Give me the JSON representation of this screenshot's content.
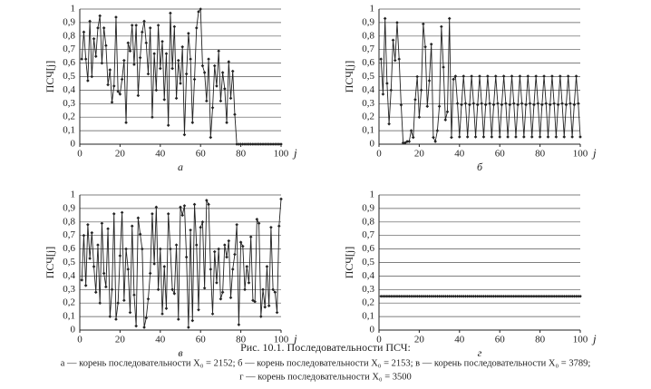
{
  "chart_data": [
    {
      "type": "line",
      "panel_label": "а",
      "y_label": "ПСЧ[j]",
      "x_label": "j",
      "x": [
        1,
        2,
        3,
        4,
        5,
        6,
        7,
        8,
        9,
        10,
        11,
        12,
        13,
        14,
        15,
        16,
        17,
        18,
        19,
        20,
        21,
        22,
        23,
        24,
        25,
        26,
        27,
        28,
        29,
        30,
        31,
        32,
        33,
        34,
        35,
        36,
        37,
        38,
        39,
        40,
        41,
        42,
        43,
        44,
        45,
        46,
        47,
        48,
        49,
        50,
        51,
        52,
        53,
        54,
        55,
        56,
        57,
        58,
        59,
        60,
        61,
        62,
        63,
        64,
        65,
        66,
        67,
        68,
        69,
        70,
        71,
        72,
        73,
        74,
        75,
        76,
        77,
        78,
        79,
        80,
        81,
        82,
        83,
        84,
        85,
        86,
        87,
        88,
        89,
        90,
        91,
        92,
        93,
        94,
        95,
        96,
        97,
        98,
        99,
        100
      ],
      "values": [
        0.63,
        0.83,
        0.63,
        0.47,
        0.91,
        0.5,
        0.78,
        0.65,
        0.86,
        0.95,
        0.6,
        0.86,
        0.73,
        0.44,
        0.55,
        0.31,
        0.43,
        0.94,
        0.39,
        0.37,
        0.48,
        0.62,
        0.16,
        0.75,
        0.69,
        0.88,
        0.59,
        0.88,
        0.36,
        0.64,
        0.83,
        0.91,
        0.75,
        0.52,
        0.86,
        0.2,
        0.67,
        0.4,
        0.88,
        0.56,
        0.76,
        0.33,
        0.67,
        0.14,
        0.97,
        0.56,
        0.87,
        0.34,
        0.62,
        0.45,
        0.72,
        0.07,
        0.52,
        0.82,
        0.63,
        0.16,
        0.48,
        0.86,
        0.98,
        1.0,
        0.58,
        0.53,
        0.32,
        0.63,
        0.05,
        0.27,
        0.58,
        0.43,
        0.69,
        0.32,
        0.53,
        0.41,
        0.16,
        0.61,
        0.34,
        0.54,
        0.22,
        0,
        0,
        0,
        0,
        0,
        0,
        0,
        0,
        0,
        0,
        0,
        0,
        0,
        0,
        0,
        0,
        0,
        0,
        0,
        0,
        0,
        0,
        0
      ],
      "color": "#222222",
      "xlim": [
        0,
        100
      ],
      "xticks": [
        0,
        20,
        40,
        60,
        80,
        100
      ],
      "ylim": [
        0,
        1
      ],
      "yticks": [
        0,
        {
          "value": 0.1,
          "label": "0,1"
        },
        {
          "value": 0.2,
          "label": "0,2"
        },
        {
          "value": 0.3,
          "label": "0,3"
        },
        {
          "value": 0.4,
          "label": "0,4"
        },
        {
          "value": 0.5,
          "label": "0,5"
        },
        {
          "value": 0.6,
          "label": "0,6"
        },
        {
          "value": 0.7,
          "label": "0,7"
        },
        {
          "value": 0.8,
          "label": "0,8"
        },
        {
          "value": 0.9,
          "label": "0,9"
        },
        1
      ],
      "grid": true
    },
    {
      "type": "line",
      "panel_label": "б",
      "y_label": "ПСЧ[j]",
      "x_label": "j",
      "x": [
        1,
        2,
        3,
        4,
        5,
        6,
        7,
        8,
        9,
        10,
        11,
        12,
        13,
        14,
        15,
        16,
        17,
        18,
        19,
        20,
        21,
        22,
        23,
        24,
        25,
        26,
        27,
        28,
        29,
        30,
        31,
        32,
        33,
        34,
        35,
        36,
        37,
        38,
        39,
        40,
        41,
        42,
        43,
        44,
        45,
        46,
        47,
        48,
        49,
        50,
        51,
        52,
        53,
        54,
        55,
        56,
        57,
        58,
        59,
        60,
        61,
        62,
        63,
        64,
        65,
        66,
        67,
        68,
        69,
        70,
        71,
        72,
        73,
        74,
        75,
        76,
        77,
        78,
        79,
        80,
        81,
        82,
        83,
        84,
        85,
        86,
        87,
        88,
        89,
        90,
        91,
        92,
        93,
        94,
        95,
        96,
        97,
        98,
        99,
        100
      ],
      "values": [
        0.63,
        0.37,
        0.93,
        0.45,
        0.15,
        0.4,
        0.77,
        0.62,
        0.9,
        0.63,
        0.29,
        0.01,
        0.01,
        0.02,
        0.02,
        0.1,
        0.05,
        0.33,
        0.5,
        0.2,
        0.4,
        0.89,
        0.72,
        0.28,
        0.47,
        0.74,
        0.05,
        0.02,
        0.1,
        0.28,
        0.87,
        0.57,
        0.18,
        0.24,
        0.93,
        0.05,
        0.48,
        0.503,
        0.3009,
        0.054,
        0.2916,
        0.503,
        0.3009,
        0.054,
        0.2916,
        0.503,
        0.3009,
        0.054,
        0.2916,
        0.503,
        0.3009,
        0.054,
        0.2916,
        0.503,
        0.3009,
        0.054,
        0.2916,
        0.503,
        0.3009,
        0.054,
        0.2916,
        0.503,
        0.3009,
        0.054,
        0.2916,
        0.503,
        0.3009,
        0.054,
        0.2916,
        0.503,
        0.3009,
        0.054,
        0.2916,
        0.503,
        0.3009,
        0.054,
        0.2916,
        0.503,
        0.3009,
        0.054,
        0.2916,
        0.503,
        0.3009,
        0.054,
        0.2916,
        0.503,
        0.3009,
        0.054,
        0.2916,
        0.503,
        0.3009,
        0.054,
        0.2916,
        0.503,
        0.3009,
        0.054,
        0.2916,
        0.503,
        0.3009,
        0.054
      ],
      "color": "#222222",
      "xlim": [
        0,
        100
      ],
      "xticks": [
        0,
        20,
        40,
        60,
        80,
        100
      ],
      "ylim": [
        0,
        1
      ],
      "yticks": [
        0,
        {
          "value": 0.1,
          "label": "0,1"
        },
        {
          "value": 0.2,
          "label": "0,2"
        },
        {
          "value": 0.3,
          "label": "0,3"
        },
        {
          "value": 0.4,
          "label": "0,4"
        },
        {
          "value": 0.5,
          "label": "0,5"
        },
        {
          "value": 0.6,
          "label": "0,6"
        },
        {
          "value": 0.7,
          "label": "0,7"
        },
        {
          "value": 0.8,
          "label": "0,8"
        },
        {
          "value": 0.9,
          "label": "0,9"
        },
        1
      ],
      "grid": true
    },
    {
      "type": "line",
      "panel_label": "в",
      "y_label": "ПСЧ[j]",
      "x_label": "j",
      "x": [
        1,
        2,
        3,
        4,
        5,
        6,
        7,
        8,
        9,
        10,
        11,
        12,
        13,
        14,
        15,
        16,
        17,
        18,
        19,
        20,
        21,
        22,
        23,
        24,
        25,
        26,
        27,
        28,
        29,
        30,
        31,
        32,
        33,
        34,
        35,
        36,
        37,
        38,
        39,
        40,
        41,
        42,
        43,
        44,
        45,
        46,
        47,
        48,
        49,
        50,
        51,
        52,
        53,
        54,
        55,
        56,
        57,
        58,
        59,
        60,
        61,
        62,
        63,
        64,
        65,
        66,
        67,
        68,
        69,
        70,
        71,
        72,
        73,
        74,
        75,
        76,
        77,
        78,
        79,
        80,
        81,
        82,
        83,
        84,
        85,
        86,
        87,
        88,
        89,
        90,
        91,
        92,
        93,
        94,
        95,
        96,
        97,
        98,
        99,
        100
      ],
      "values": [
        0.37,
        0.7,
        0.33,
        0.78,
        0.53,
        0.72,
        0.47,
        0.28,
        0.63,
        0.2,
        0.79,
        0.42,
        0.32,
        0.75,
        0.1,
        0.3,
        0.86,
        0.08,
        0.2,
        0.55,
        0.87,
        0.22,
        0.6,
        0.45,
        0.13,
        0.77,
        0.26,
        0.03,
        0.83,
        0.71,
        0.6,
        0.02,
        0.09,
        0.23,
        0.42,
        0.86,
        0.49,
        0.91,
        0.3,
        0.6,
        0.12,
        0.47,
        0.16,
        0.86,
        0.6,
        0.3,
        0.27,
        0.63,
        0.08,
        0.91,
        0.85,
        0.92,
        0.54,
        0.02,
        0.74,
        0.07,
        0.93,
        0.63,
        0.15,
        0.76,
        0.8,
        0.31,
        0.96,
        0.93,
        0.45,
        0.12,
        0.58,
        0.35,
        0.6,
        0.23,
        0.28,
        0.63,
        0.54,
        0.66,
        0.24,
        0.45,
        0.56,
        0.78,
        0.04,
        0.65,
        0.62,
        0.3,
        0.47,
        0.35,
        0.69,
        0.22,
        0.21,
        0.82,
        0.79,
        0.1,
        0.3,
        0.17,
        0.47,
        0.18,
        0.76,
        0.3,
        0.28,
        0.13,
        0.77,
        0.97
      ],
      "color": "#222222",
      "xlim": [
        0,
        100
      ],
      "xticks": [
        0,
        20,
        40,
        60,
        80,
        100
      ],
      "ylim": [
        0,
        1
      ],
      "yticks": [
        0,
        {
          "value": 0.1,
          "label": "0,1"
        },
        {
          "value": 0.2,
          "label": "0,2"
        },
        {
          "value": 0.3,
          "label": "0,3"
        },
        {
          "value": 0.4,
          "label": "0,4"
        },
        {
          "value": 0.5,
          "label": "0,5"
        },
        {
          "value": 0.6,
          "label": "0,6"
        },
        {
          "value": 0.7,
          "label": "0,7"
        },
        {
          "value": 0.8,
          "label": "0,8"
        },
        {
          "value": 0.9,
          "label": "0,9"
        },
        1
      ],
      "grid": true
    },
    {
      "type": "line",
      "panel_label": "г",
      "y_label": "ПСЧ[j]",
      "x_label": "j",
      "x": [
        1,
        2,
        3,
        4,
        5,
        6,
        7,
        8,
        9,
        10,
        11,
        12,
        13,
        14,
        15,
        16,
        17,
        18,
        19,
        20,
        21,
        22,
        23,
        24,
        25,
        26,
        27,
        28,
        29,
        30,
        31,
        32,
        33,
        34,
        35,
        36,
        37,
        38,
        39,
        40,
        41,
        42,
        43,
        44,
        45,
        46,
        47,
        48,
        49,
        50,
        51,
        52,
        53,
        54,
        55,
        56,
        57,
        58,
        59,
        60,
        61,
        62,
        63,
        64,
        65,
        66,
        67,
        68,
        69,
        70,
        71,
        72,
        73,
        74,
        75,
        76,
        77,
        78,
        79,
        80,
        81,
        82,
        83,
        84,
        85,
        86,
        87,
        88,
        89,
        90,
        91,
        92,
        93,
        94,
        95,
        96,
        97,
        98,
        99,
        100
      ],
      "values": [
        0.25,
        0.25,
        0.25,
        0.25,
        0.25,
        0.25,
        0.25,
        0.25,
        0.25,
        0.25,
        0.25,
        0.25,
        0.25,
        0.25,
        0.25,
        0.25,
        0.25,
        0.25,
        0.25,
        0.25,
        0.25,
        0.25,
        0.25,
        0.25,
        0.25,
        0.25,
        0.25,
        0.25,
        0.25,
        0.25,
        0.25,
        0.25,
        0.25,
        0.25,
        0.25,
        0.25,
        0.25,
        0.25,
        0.25,
        0.25,
        0.25,
        0.25,
        0.25,
        0.25,
        0.25,
        0.25,
        0.25,
        0.25,
        0.25,
        0.25,
        0.25,
        0.25,
        0.25,
        0.25,
        0.25,
        0.25,
        0.25,
        0.25,
        0.25,
        0.25,
        0.25,
        0.25,
        0.25,
        0.25,
        0.25,
        0.25,
        0.25,
        0.25,
        0.25,
        0.25,
        0.25,
        0.25,
        0.25,
        0.25,
        0.25,
        0.25,
        0.25,
        0.25,
        0.25,
        0.25,
        0.25,
        0.25,
        0.25,
        0.25,
        0.25,
        0.25,
        0.25,
        0.25,
        0.25,
        0.25,
        0.25,
        0.25,
        0.25,
        0.25,
        0.25,
        0.25,
        0.25,
        0.25,
        0.25,
        0.25
      ],
      "color": "#222222",
      "xlim": [
        0,
        100
      ],
      "xticks": [
        0,
        20,
        40,
        60,
        80,
        100
      ],
      "ylim": [
        0,
        1
      ],
      "yticks": [
        0,
        {
          "value": 0.1,
          "label": "0,1"
        },
        {
          "value": 0.2,
          "label": "0,2"
        },
        {
          "value": 0.3,
          "label": "0,3"
        },
        {
          "value": 0.4,
          "label": "0,4"
        },
        {
          "value": 0.5,
          "label": "0,5"
        },
        {
          "value": 0.6,
          "label": "0,6"
        },
        {
          "value": 0.7,
          "label": "0,7"
        },
        {
          "value": 0.8,
          "label": "0,8"
        },
        {
          "value": 0.9,
          "label": "0,9"
        },
        1
      ],
      "grid": true
    }
  ],
  "caption": {
    "title": "Рис. 10.1. Последовательности ПСЧ:",
    "lines": [
      "а — корень последовательности X₀ = 2152; б — корень последовательности X₀ = 2153; в — корень последовательности X₀ = 3789;",
      "г — корень последовательности X₀ = 3500"
    ]
  }
}
